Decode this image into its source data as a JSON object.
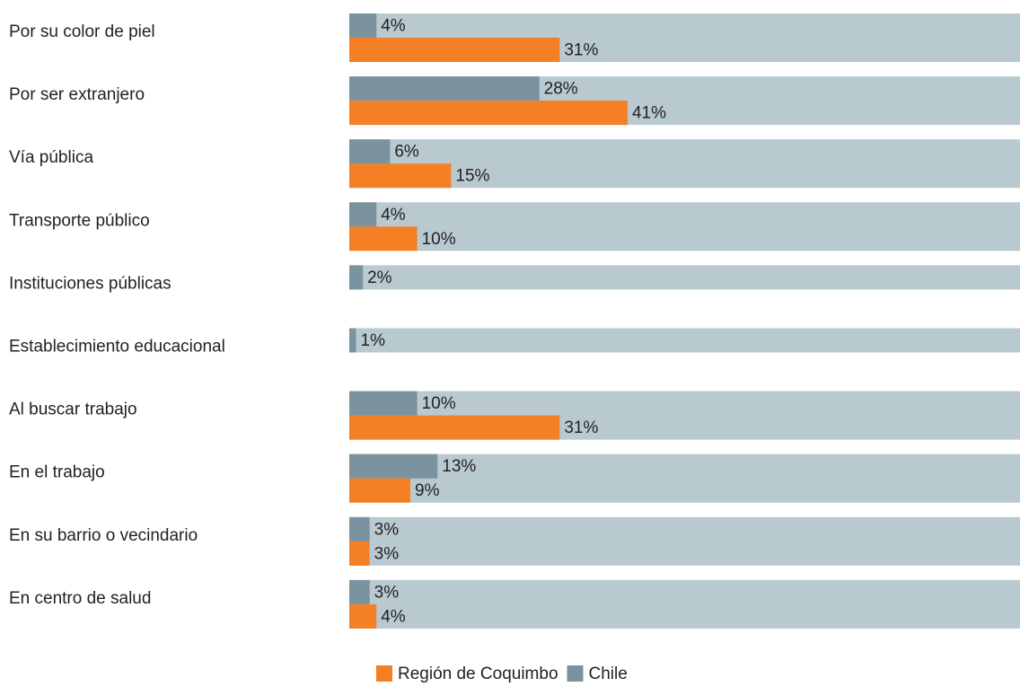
{
  "chart_data": {
    "type": "hbar",
    "categories": [
      "Por su color de piel",
      "Por ser extranjero",
      "Vía pública",
      "Transporte público",
      "Instituciones públicas",
      "Establecimiento educacional",
      "Al buscar trabajo",
      "En el trabajo",
      "En su barrio o vecindario",
      "En centro de salud"
    ],
    "series": [
      {
        "name": "Región de Coquimbo",
        "color": "#f47f24",
        "values": [
          31,
          41,
          15,
          10,
          null,
          null,
          31,
          9,
          3,
          4
        ],
        "value_labels": [
          "31%",
          "41%",
          "15%",
          "10%",
          null,
          null,
          "31%",
          "9%",
          "3%",
          "4%"
        ]
      },
      {
        "name": "Chile",
        "color": "#7a939e",
        "values": [
          4,
          28,
          6,
          4,
          2,
          1,
          10,
          13,
          3,
          3
        ],
        "value_labels": [
          "4%",
          "28%",
          "6%",
          "4%",
          "2%",
          "1%",
          "10%",
          "13%",
          "3%",
          "3%"
        ]
      }
    ],
    "xlim": [
      0,
      100
    ],
    "track_color": "#b9c9d0"
  }
}
